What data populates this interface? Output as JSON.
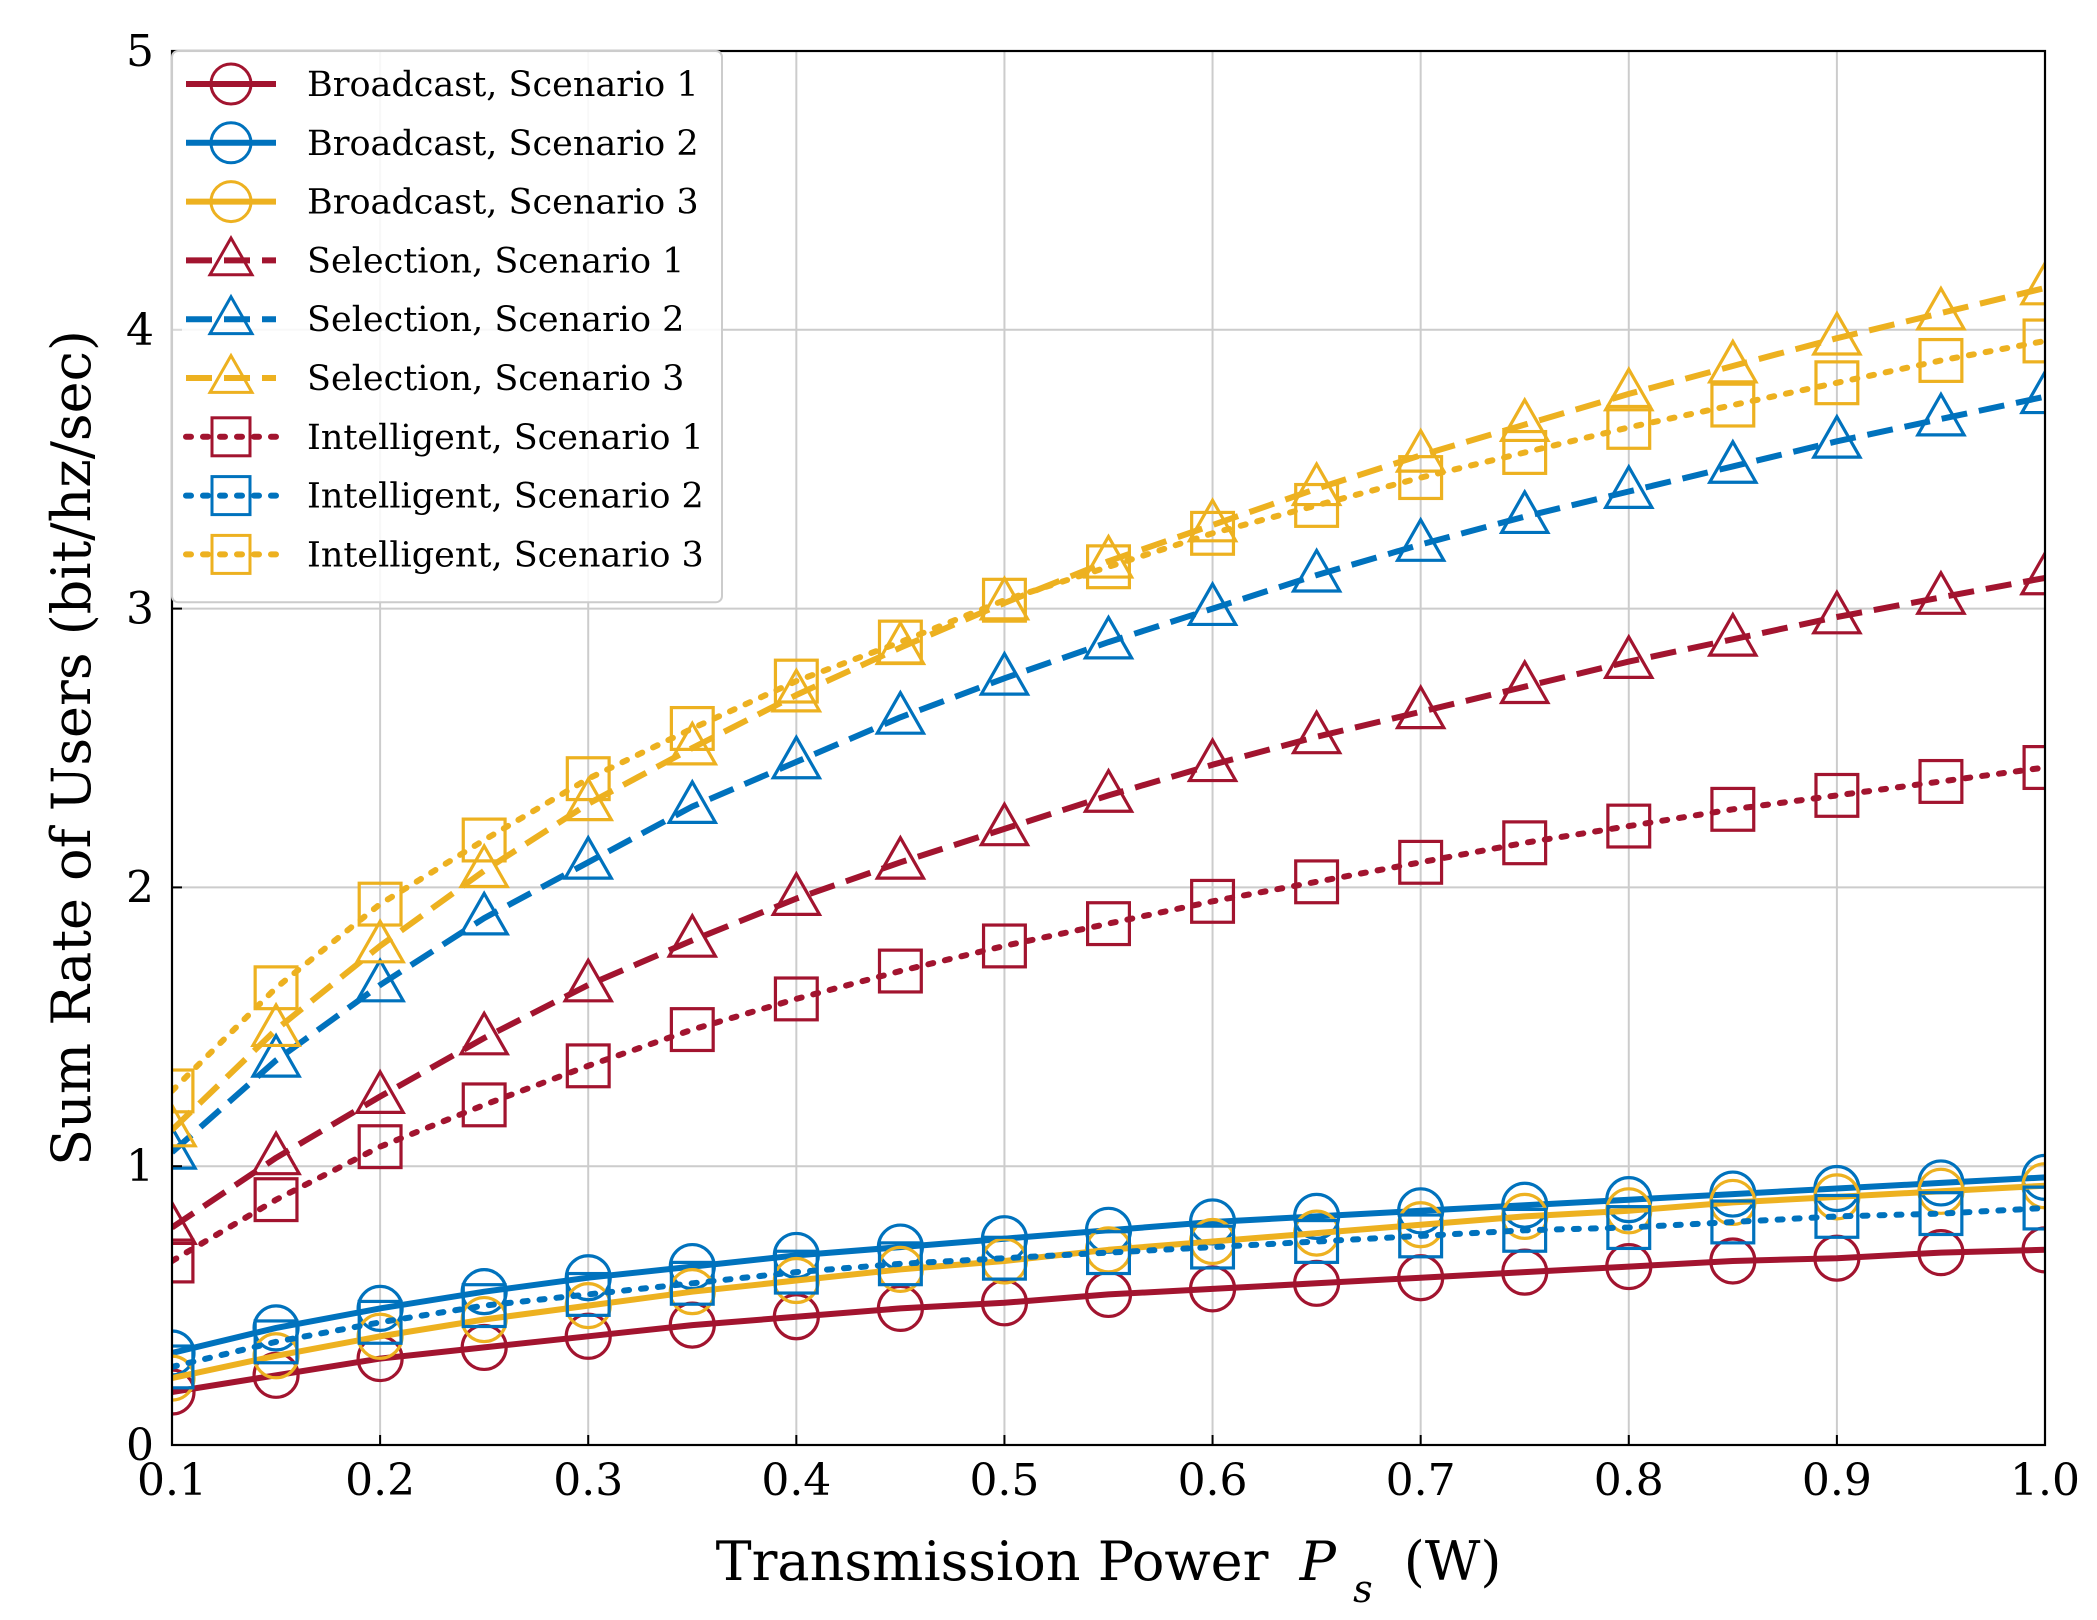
{
  "chart_data": {
    "type": "line",
    "xlabel": "Transmission Power",
    "xlabel_symbol": "P",
    "xlabel_subscript": "s",
    "xlabel_unit": "(W)",
    "ylabel": "Sum Rate of Users (bit/hz/sec)",
    "xlim": [
      0.1,
      1.0
    ],
    "ylim": [
      0,
      5
    ],
    "xticks": [
      0.1,
      0.2,
      0.3,
      0.4,
      0.5,
      0.6,
      0.7,
      0.8,
      0.9,
      1.0
    ],
    "xtick_labels": [
      "0.1",
      "0.2",
      "0.3",
      "0.4",
      "0.5",
      "0.6",
      "0.7",
      "0.8",
      "0.9",
      "1.0"
    ],
    "yticks": [
      0,
      1,
      2,
      3,
      4,
      5
    ],
    "ytick_labels": [
      "0",
      "1",
      "2",
      "3",
      "4",
      "5"
    ],
    "grid": true,
    "legend_position": "top-left",
    "x": [
      0.1,
      0.15,
      0.2,
      0.25,
      0.3,
      0.35,
      0.4,
      0.45,
      0.5,
      0.55,
      0.6,
      0.65,
      0.7,
      0.75,
      0.8,
      0.85,
      0.9,
      0.95,
      1.0
    ],
    "series": [
      {
        "name": "Broadcast, Scenario 1",
        "color": "#A2142F",
        "line_style": "solid",
        "marker": "circle",
        "values": [
          0.19,
          0.25,
          0.31,
          0.35,
          0.39,
          0.43,
          0.46,
          0.49,
          0.51,
          0.54,
          0.56,
          0.58,
          0.6,
          0.62,
          0.64,
          0.66,
          0.67,
          0.69,
          0.7
        ]
      },
      {
        "name": "Broadcast, Scenario 2",
        "color": "#0072BD",
        "line_style": "solid",
        "marker": "circle",
        "values": [
          0.33,
          0.42,
          0.49,
          0.55,
          0.6,
          0.64,
          0.68,
          0.71,
          0.74,
          0.77,
          0.8,
          0.82,
          0.84,
          0.86,
          0.88,
          0.9,
          0.92,
          0.94,
          0.96
        ]
      },
      {
        "name": "Broadcast, Scenario 3",
        "color": "#EDB120",
        "line_style": "solid",
        "marker": "circle",
        "values": [
          0.24,
          0.32,
          0.39,
          0.45,
          0.5,
          0.55,
          0.59,
          0.63,
          0.66,
          0.7,
          0.73,
          0.76,
          0.79,
          0.82,
          0.84,
          0.87,
          0.89,
          0.91,
          0.93
        ]
      },
      {
        "name": "Selection, Scenario 1",
        "color": "#A2142F",
        "line_style": "dashed",
        "marker": "triangle",
        "values": [
          0.78,
          1.03,
          1.25,
          1.46,
          1.65,
          1.81,
          1.96,
          2.09,
          2.21,
          2.33,
          2.44,
          2.54,
          2.63,
          2.72,
          2.81,
          2.89,
          2.97,
          3.04,
          3.11
        ]
      },
      {
        "name": "Selection, Scenario 2",
        "color": "#0072BD",
        "line_style": "dashed",
        "marker": "triangle",
        "values": [
          1.05,
          1.38,
          1.65,
          1.89,
          2.09,
          2.29,
          2.45,
          2.61,
          2.75,
          2.88,
          3.0,
          3.12,
          3.23,
          3.33,
          3.42,
          3.51,
          3.6,
          3.68,
          3.76
        ]
      },
      {
        "name": "Selection, Scenario 3",
        "color": "#EDB120",
        "line_style": "dashed",
        "marker": "triangle",
        "values": [
          1.13,
          1.49,
          1.79,
          2.06,
          2.3,
          2.5,
          2.69,
          2.86,
          3.02,
          3.17,
          3.3,
          3.43,
          3.55,
          3.66,
          3.77,
          3.87,
          3.97,
          4.06,
          4.15
        ]
      },
      {
        "name": "Intelligent, Scenario 1",
        "color": "#A2142F",
        "line_style": "dotted",
        "marker": "square",
        "values": [
          0.66,
          0.88,
          1.07,
          1.22,
          1.36,
          1.49,
          1.6,
          1.7,
          1.79,
          1.87,
          1.95,
          2.02,
          2.09,
          2.16,
          2.22,
          2.28,
          2.33,
          2.38,
          2.43
        ]
      },
      {
        "name": "Intelligent, Scenario 2",
        "color": "#0072BD",
        "line_style": "dotted",
        "marker": "square",
        "values": [
          0.28,
          0.37,
          0.44,
          0.5,
          0.54,
          0.58,
          0.62,
          0.65,
          0.67,
          0.69,
          0.71,
          0.73,
          0.75,
          0.77,
          0.78,
          0.8,
          0.82,
          0.83,
          0.85
        ]
      },
      {
        "name": "Intelligent, Scenario 3",
        "color": "#EDB120",
        "line_style": "dotted",
        "marker": "square",
        "values": [
          1.27,
          1.64,
          1.94,
          2.17,
          2.39,
          2.57,
          2.74,
          2.88,
          3.03,
          3.15,
          3.27,
          3.37,
          3.47,
          3.56,
          3.65,
          3.73,
          3.81,
          3.89,
          3.96
        ]
      }
    ]
  }
}
